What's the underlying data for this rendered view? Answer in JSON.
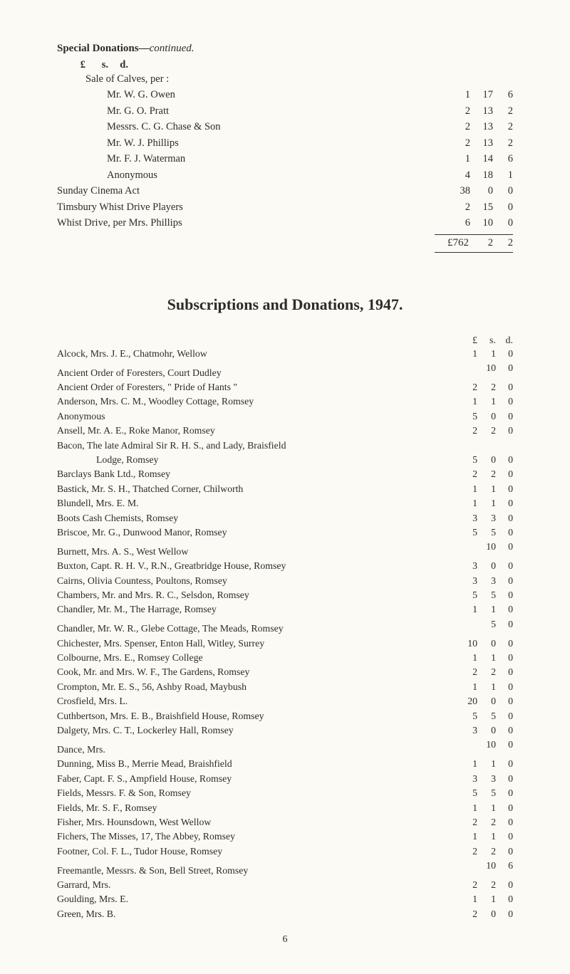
{
  "donations": {
    "heading_bold": "Special Donations",
    "heading_dash": "—",
    "heading_italic": "continued.",
    "lsd": {
      "L": "£",
      "S": "s.",
      "D": "d."
    },
    "intro": "Sale of Calves, per :",
    "items": [
      {
        "label": "Mr. W. G. Owen",
        "indent": 2,
        "L": "1",
        "S": "17",
        "D": "6"
      },
      {
        "label": "Mr. G. O. Pratt",
        "indent": 2,
        "L": "2",
        "S": "13",
        "D": "2"
      },
      {
        "label": "Messrs. C. G. Chase & Son",
        "indent": 2,
        "L": "2",
        "S": "13",
        "D": "2"
      },
      {
        "label": "Mr. W. J. Phillips",
        "indent": 2,
        "L": "2",
        "S": "13",
        "D": "2"
      },
      {
        "label": "Mr. F. J. Waterman",
        "indent": 2,
        "L": "1",
        "S": "14",
        "D": "6"
      },
      {
        "label": "Anonymous",
        "indent": 2,
        "L": "4",
        "S": "18",
        "D": "1"
      },
      {
        "label": "Sunday Cinema Act",
        "indent": 0,
        "L": "38",
        "S": "0",
        "D": "0"
      },
      {
        "label": "Timsbury Whist Drive Players",
        "indent": 0,
        "L": "2",
        "S": "15",
        "D": "0"
      },
      {
        "label": "Whist Drive, per Mrs. Phillips",
        "indent": 0,
        "L": "6",
        "S": "10",
        "D": "0"
      }
    ],
    "total": {
      "label": "£762",
      "S": "2",
      "D": "2"
    }
  },
  "subscriptions": {
    "title": "Subscriptions and Donations, 1947.",
    "lsd": {
      "L": "£",
      "S": "s.",
      "D": "d."
    },
    "items": [
      {
        "label": "Alcock, Mrs. J. E., Chatmohr, Wellow",
        "L": "1",
        "S": "1",
        "D": "0"
      },
      {
        "label": "Ancient Order of Foresters, Court Dudley",
        "L": "",
        "S": "10",
        "D": "0"
      },
      {
        "label": "Ancient Order of Foresters, \" Pride of Hants \"",
        "L": "2",
        "S": "2",
        "D": "0"
      },
      {
        "label": "Anderson, Mrs. C. M., Woodley Cottage, Romsey",
        "L": "1",
        "S": "1",
        "D": "0"
      },
      {
        "label": "Anonymous",
        "L": "5",
        "S": "0",
        "D": "0"
      },
      {
        "label": "Ansell, Mr. A. E., Roke Manor, Romsey",
        "L": "2",
        "S": "2",
        "D": "0"
      },
      {
        "label": "Bacon, The late Admiral Sir R. H. S., and Lady, Braisfield",
        "noamt": true
      },
      {
        "label": "Lodge, Romsey",
        "pad": true,
        "L": "5",
        "S": "0",
        "D": "0"
      },
      {
        "label": "Barclays Bank Ltd., Romsey",
        "L": "2",
        "S": "2",
        "D": "0"
      },
      {
        "label": "Bastick, Mr. S. H., Thatched Corner, Chilworth",
        "L": "1",
        "S": "1",
        "D": "0"
      },
      {
        "label": "Blundell, Mrs. E. M.",
        "L": "1",
        "S": "1",
        "D": "0"
      },
      {
        "label": "Boots Cash Chemists, Romsey",
        "L": "3",
        "S": "3",
        "D": "0"
      },
      {
        "label": "Briscoe, Mr. G., Dunwood Manor, Romsey",
        "L": "5",
        "S": "5",
        "D": "0"
      },
      {
        "label": "Burnett, Mrs. A. S., West Wellow",
        "L": "",
        "S": "10",
        "D": "0"
      },
      {
        "label": "Buxton, Capt. R. H. V., R.N., Greatbridge House, Romsey",
        "L": "3",
        "S": "0",
        "D": "0"
      },
      {
        "label": "Cairns, Olivia Countess, Poultons, Romsey",
        "L": "3",
        "S": "3",
        "D": "0"
      },
      {
        "label": "Chambers, Mr. and Mrs. R. C., Selsdon, Romsey",
        "L": "5",
        "S": "5",
        "D": "0"
      },
      {
        "label": "Chandler, Mr. M., The Harrage, Romsey",
        "L": "1",
        "S": "1",
        "D": "0"
      },
      {
        "label": "Chandler, Mr. W. R., Glebe Cottage, The Meads, Romsey",
        "L": "",
        "S": "5",
        "D": "0"
      },
      {
        "label": "Chichester, Mrs. Spenser, Enton Hall, Witley, Surrey",
        "L": "10",
        "S": "0",
        "D": "0"
      },
      {
        "label": "Colbourne, Mrs. E., Romsey College",
        "L": "1",
        "S": "1",
        "D": "0"
      },
      {
        "label": "Cook, Mr. and Mrs. W. F., The Gardens, Romsey",
        "L": "2",
        "S": "2",
        "D": "0"
      },
      {
        "label": "Crompton, Mr. E. S., 56, Ashby Road, Maybush",
        "L": "1",
        "S": "1",
        "D": "0"
      },
      {
        "label": "Crosfield, Mrs. L.",
        "L": "20",
        "S": "0",
        "D": "0"
      },
      {
        "label": "Cuthbertson, Mrs. E. B., Braishfield House, Romsey",
        "L": "5",
        "S": "5",
        "D": "0"
      },
      {
        "label": "Dalgety, Mrs. C. T., Lockerley Hall, Romsey",
        "L": "3",
        "S": "0",
        "D": "0"
      },
      {
        "label": "Dance, Mrs.",
        "L": "",
        "S": "10",
        "D": "0"
      },
      {
        "label": "Dunning, Miss B., Merrie Mead, Braishfield",
        "L": "1",
        "S": "1",
        "D": "0"
      },
      {
        "label": "Faber, Capt. F. S., Ampfield House, Romsey",
        "L": "3",
        "S": "3",
        "D": "0"
      },
      {
        "label": "Fields, Messrs. F. & Son, Romsey",
        "L": "5",
        "S": "5",
        "D": "0"
      },
      {
        "label": "Fields, Mr. S. F., Romsey",
        "L": "1",
        "S": "1",
        "D": "0"
      },
      {
        "label": "Fisher, Mrs. Hounsdown, West Wellow",
        "L": "2",
        "S": "2",
        "D": "0"
      },
      {
        "label": "Fichers, The Misses, 17, The Abbey, Romsey",
        "L": "1",
        "S": "1",
        "D": "0"
      },
      {
        "label": "Footner, Col. F. L., Tudor House, Romsey",
        "L": "2",
        "S": "2",
        "D": "0"
      },
      {
        "label": "Freemantle, Messrs. & Son, Bell Street, Romsey",
        "L": "",
        "S": "10",
        "D": "6"
      },
      {
        "label": "Garrard, Mrs.",
        "L": "2",
        "S": "2",
        "D": "0"
      },
      {
        "label": "Goulding, Mrs. E.",
        "L": "1",
        "S": "1",
        "D": "0"
      },
      {
        "label": "Green, Mrs. B.",
        "L": "2",
        "S": "0",
        "D": "0"
      }
    ]
  },
  "page_number": "6"
}
